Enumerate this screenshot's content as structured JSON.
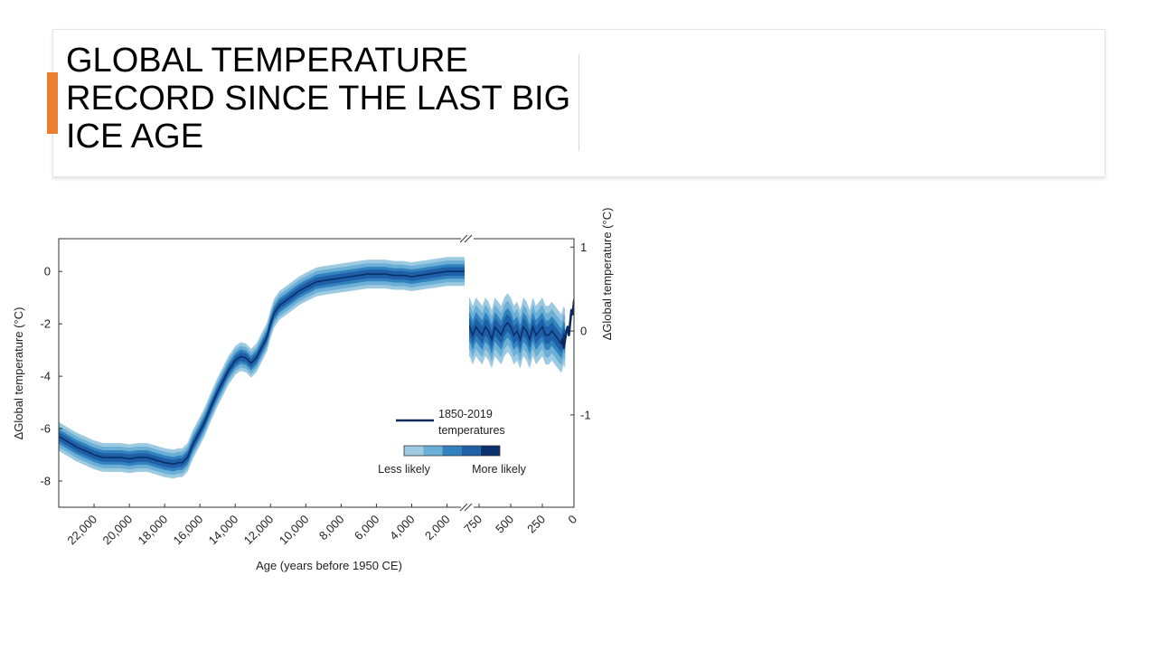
{
  "slide": {
    "title_lines": [
      "GLOBAL TEMPERATURE",
      "RECORD SINCE THE LAST BIG",
      "ICE AGE"
    ],
    "accent_color": "#ED7D31"
  },
  "chart_data": {
    "type": "line",
    "title": "",
    "xlabel": "Age (years before 1950 CE)",
    "ylabel": "ΔGlobal temperature (°C)",
    "ylabel_right": "ΔGlobal temperature (°C)",
    "grid": false,
    "x_reversed": true,
    "broken_x_axis": true,
    "segments": [
      {
        "name": "paleo",
        "xlim": [
          24000,
          900
        ],
        "ylim": [
          -9,
          1.25
        ],
        "x_ticks": [
          22000,
          20000,
          18000,
          16000,
          14000,
          12000,
          10000,
          8000,
          6000,
          4000,
          2000
        ],
        "x_tick_labels": [
          "22,000",
          "20,000",
          "18,000",
          "16,000",
          "14,000",
          "12,000",
          "10,000",
          "8,000",
          "6,000",
          "4,000",
          "2,000"
        ],
        "y_ticks": [
          0,
          -2,
          -4,
          -6,
          -8
        ],
        "y_tick_labels": [
          "0",
          "-2",
          "-4",
          "-6",
          "-8"
        ]
      },
      {
        "name": "recent",
        "xlim": [
          850,
          0
        ],
        "ylim": [
          -2.1,
          1.1
        ],
        "x_ticks": [
          750,
          500,
          250,
          0
        ],
        "x_tick_labels": [
          "750",
          "500",
          "250",
          "0"
        ],
        "y_ticks": [
          1,
          0,
          -1
        ],
        "y_tick_labels": [
          "1",
          "0",
          "-1"
        ]
      }
    ],
    "series": [
      {
        "name": "reconstruction",
        "color": "#2166AC",
        "x": [
          24000,
          23500,
          23000,
          22500,
          22000,
          21500,
          21000,
          20500,
          20000,
          19500,
          19000,
          18500,
          18000,
          17500,
          17200,
          17000,
          16700,
          16400,
          16000,
          15700,
          15400,
          15000,
          14700,
          14400,
          14000,
          13700,
          13400,
          13100,
          12800,
          12500,
          12200,
          12000,
          11800,
          11500,
          11200,
          11000,
          10700,
          10400,
          10000,
          9700,
          9400,
          9000,
          8500,
          8000,
          7500,
          7000,
          6500,
          6000,
          5500,
          5000,
          4500,
          4000,
          3500,
          3000,
          2500,
          2000,
          1500,
          1000
        ],
        "y": [
          -6.3,
          -6.5,
          -6.7,
          -6.85,
          -7.0,
          -7.1,
          -7.1,
          -7.1,
          -7.15,
          -7.1,
          -7.1,
          -7.2,
          -7.3,
          -7.35,
          -7.3,
          -7.3,
          -7.1,
          -6.6,
          -6.1,
          -5.7,
          -5.2,
          -4.6,
          -4.2,
          -3.8,
          -3.4,
          -3.25,
          -3.3,
          -3.5,
          -3.3,
          -2.9,
          -2.5,
          -2.0,
          -1.6,
          -1.3,
          -1.15,
          -1.05,
          -0.9,
          -0.75,
          -0.6,
          -0.5,
          -0.4,
          -0.35,
          -0.3,
          -0.25,
          -0.2,
          -0.15,
          -0.1,
          -0.1,
          -0.1,
          -0.15,
          -0.15,
          -0.2,
          -0.15,
          -0.1,
          -0.05,
          0.0,
          0.0,
          0.0
        ],
        "uncertainty": 0.55
      },
      {
        "name": "recent-reconstruction",
        "color": "#2166AC",
        "x": [
          850,
          825,
          800,
          775,
          750,
          725,
          700,
          675,
          650,
          625,
          600,
          575,
          550,
          525,
          500,
          475,
          450,
          425,
          400,
          375,
          350,
          325,
          300,
          275,
          250,
          225,
          200,
          175,
          150,
          125,
          100,
          90,
          80,
          70
        ],
        "y": [
          0.0,
          0.05,
          -0.05,
          0.05,
          0.0,
          -0.05,
          0.05,
          0.0,
          -0.1,
          0.05,
          0.0,
          -0.05,
          0.05,
          0.1,
          0.05,
          -0.05,
          0.0,
          -0.1,
          0.05,
          0.0,
          -0.1,
          0.05,
          -0.05,
          0.0,
          0.05,
          -0.05,
          -0.05,
          0.0,
          -0.05,
          -0.1,
          -0.15,
          -0.1,
          -0.05,
          -0.1
        ],
        "uncertainty": 0.35
      },
      {
        "name": "1850-2019 temperatures",
        "color": "#0B2A5B",
        "x": [
          100,
          90,
          80,
          70,
          60,
          50,
          40,
          30,
          20,
          10,
          0,
          -30,
          -50,
          -69
        ],
        "y": [
          -0.15,
          -0.1,
          -0.2,
          -0.1,
          0.0,
          0.05,
          -0.05,
          0.1,
          0.25,
          0.2,
          0.35,
          0.55,
          0.75,
          1.0
        ]
      }
    ],
    "legend": {
      "placement": "lower-right",
      "line_label": [
        "1850-2019",
        "temperatures"
      ],
      "scale_colors": [
        "#9ECAE1",
        "#6BAED6",
        "#3182BD",
        "#1F5FA8",
        "#08306B"
      ],
      "less_label": "Less likely",
      "more_label": "More likely"
    }
  }
}
